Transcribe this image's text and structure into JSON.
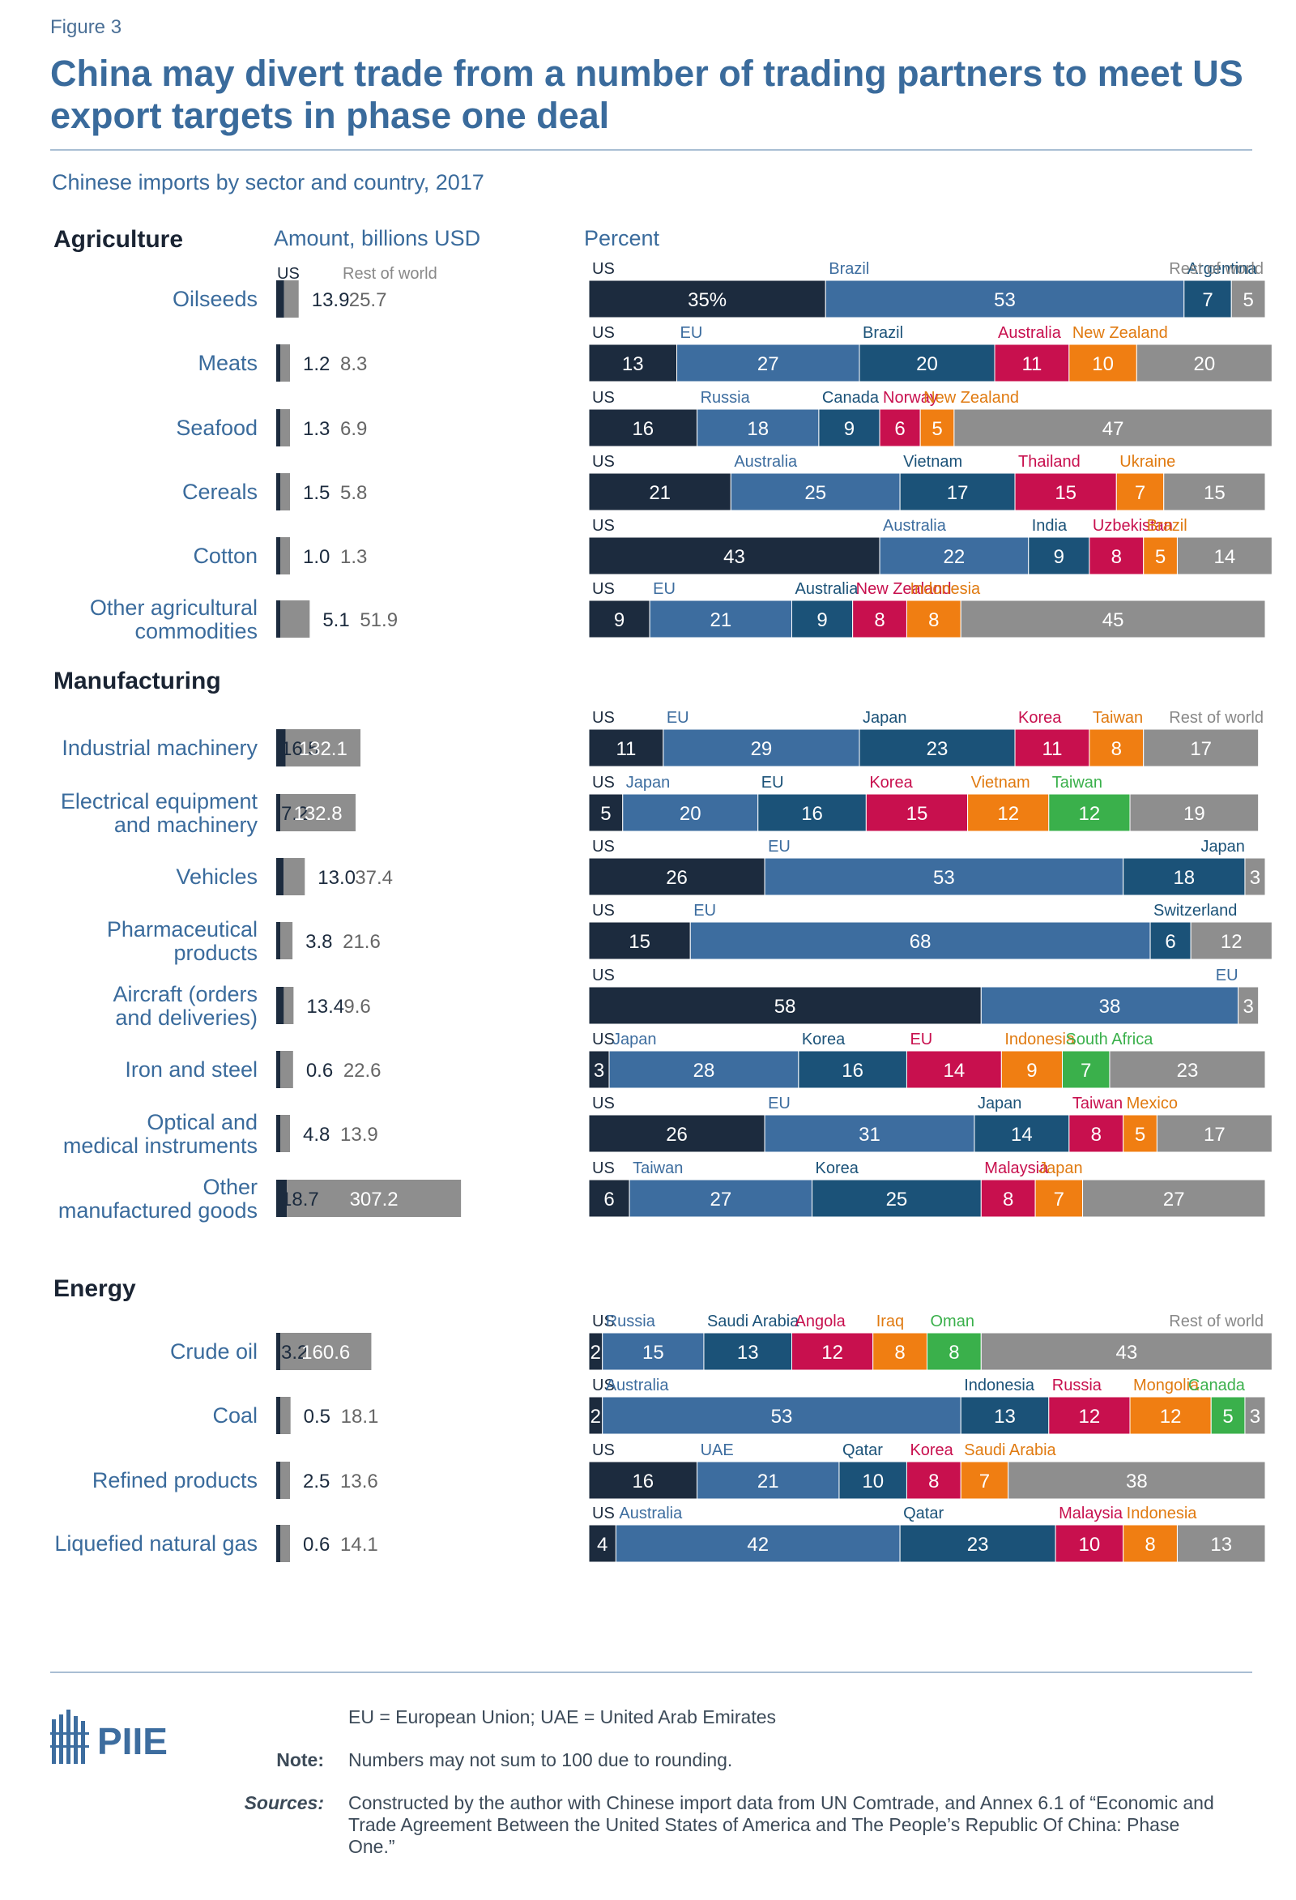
{
  "figure_label": "Figure 3",
  "title": "China may divert trade from a number of trading partners to meet US export targets in phase one deal",
  "subtitle": "Chinese imports by sector and country, 2017",
  "amount_header": "Amount, billions USD",
  "percent_header": "Percent",
  "amount_legend": {
    "us": "US",
    "row": "Rest of world"
  },
  "colors": {
    "US": "#1c2b3e",
    "c2": "#3d6d9f",
    "c3": "#1b5278",
    "c4": "#c8104e",
    "c5": "#f07e12",
    "c6": "#3ab04b",
    "rest": "#8e8e8e",
    "row_amount": "#8e8e8e",
    "label_us": "#1c2b3e",
    "label_c2": "#3d6d9f",
    "label_c3": "#1b5278",
    "label_c4": "#c8104e",
    "label_c5": "#e07a10",
    "label_c6": "#3ab04b",
    "label_rest": "#888888"
  },
  "chart_data": {
    "type": "bar",
    "sections": [
      {
        "name": "Agriculture",
        "rows": [
          {
            "label": "Oilseeds",
            "us": 13.9,
            "row": 25.7,
            "us_text": "13.9",
            "row_text": "25.7",
            "segments": [
              {
                "c": "US",
                "v": 35,
                "t": "35%",
                "lab": "US"
              },
              {
                "c": "Brazil",
                "v": 53,
                "lab": "Brazil"
              },
              {
                "c": "Argentina",
                "v": 7,
                "lab": "Argentina"
              },
              {
                "c": "Rest of world",
                "v": 5,
                "lab": "Rest of world"
              }
            ]
          },
          {
            "label": "Meats",
            "us": 1.2,
            "row": 8.3,
            "us_text": "1.2",
            "row_text": "8.3",
            "segments": [
              {
                "c": "US",
                "v": 13
              },
              {
                "c": "EU",
                "v": 27
              },
              {
                "c": "Brazil",
                "v": 20
              },
              {
                "c": "Australia",
                "v": 11
              },
              {
                "c": "New Zealand",
                "v": 10
              },
              {
                "c": "Rest of world",
                "v": 20
              }
            ]
          },
          {
            "label": "Seafood",
            "us": 1.3,
            "row": 6.9,
            "us_text": "1.3",
            "row_text": "6.9",
            "segments": [
              {
                "c": "US",
                "v": 16
              },
              {
                "c": "Russia",
                "v": 18
              },
              {
                "c": "Canada",
                "v": 9
              },
              {
                "c": "Norway",
                "v": 6
              },
              {
                "c": "New Zealand",
                "v": 5
              },
              {
                "c": "Rest of world",
                "v": 47
              }
            ]
          },
          {
            "label": "Cereals",
            "us": 1.5,
            "row": 5.8,
            "us_text": "1.5",
            "row_text": "5.8",
            "segments": [
              {
                "c": "US",
                "v": 21
              },
              {
                "c": "Australia",
                "v": 25
              },
              {
                "c": "Vietnam",
                "v": 17
              },
              {
                "c": "Thailand",
                "v": 15
              },
              {
                "c": "Ukraine",
                "v": 7
              },
              {
                "c": "Rest of world",
                "v": 15
              }
            ]
          },
          {
            "label": "Cotton",
            "us": 1.0,
            "row": 1.3,
            "us_text": "1.0",
            "row_text": "1.3",
            "segments": [
              {
                "c": "US",
                "v": 43
              },
              {
                "c": "Australia",
                "v": 22
              },
              {
                "c": "India",
                "v": 9
              },
              {
                "c": "Uzbekistan",
                "v": 8
              },
              {
                "c": "Brazil",
                "v": 5
              },
              {
                "c": "Rest of world",
                "v": 14
              }
            ]
          },
          {
            "label": "Other agricultural commodities",
            "us": 5.1,
            "row": 51.9,
            "us_text": "5.1",
            "row_text": "51.9",
            "segments": [
              {
                "c": "US",
                "v": 9
              },
              {
                "c": "EU",
                "v": 21
              },
              {
                "c": "Australia",
                "v": 9
              },
              {
                "c": "New Zealand",
                "v": 8
              },
              {
                "c": "Indonesia",
                "v": 8
              },
              {
                "c": "Rest of world",
                "v": 45
              }
            ]
          }
        ]
      },
      {
        "name": "Manufacturing",
        "rows": [
          {
            "label": "Industrial machinery",
            "us": 16.5,
            "row": 132.1,
            "us_text": "16.5",
            "row_text": "132.1",
            "segments": [
              {
                "c": "US",
                "v": 11
              },
              {
                "c": "EU",
                "v": 29
              },
              {
                "c": "Japan",
                "v": 23
              },
              {
                "c": "Korea",
                "v": 11
              },
              {
                "c": "Taiwan",
                "v": 8
              },
              {
                "c": "Rest of world",
                "v": 17,
                "lab": "Rest of world"
              }
            ]
          },
          {
            "label": "Electrical equipment and machinery",
            "us": 7.2,
            "row": 132.8,
            "us_text": "7.2",
            "row_text": "132.8",
            "segments": [
              {
                "c": "US",
                "v": 5
              },
              {
                "c": "Japan",
                "v": 20
              },
              {
                "c": "EU",
                "v": 16
              },
              {
                "c": "Korea",
                "v": 15
              },
              {
                "c": "Vietnam",
                "v": 12
              },
              {
                "c": "Taiwan",
                "v": 12
              },
              {
                "c": "Rest of world",
                "v": 19
              }
            ]
          },
          {
            "label": "Vehicles",
            "us": 13.0,
            "row": 37.4,
            "us_text": "13.0",
            "row_text": "37.4",
            "segments": [
              {
                "c": "US",
                "v": 26
              },
              {
                "c": "EU",
                "v": 53
              },
              {
                "c": "Japan",
                "v": 18
              },
              {
                "c": "Rest of world",
                "v": 3
              }
            ]
          },
          {
            "label": "Pharmaceutical products",
            "us": 3.8,
            "row": 21.6,
            "us_text": "3.8",
            "row_text": "21.6",
            "segments": [
              {
                "c": "US",
                "v": 15
              },
              {
                "c": "EU",
                "v": 68
              },
              {
                "c": "Switzerland",
                "v": 6
              },
              {
                "c": "Rest of world",
                "v": 12
              }
            ]
          },
          {
            "label": "Aircraft (orders and deliveries)",
            "us": 13.4,
            "row": 9.6,
            "us_text": "13.4",
            "row_text": "9.6",
            "segments": [
              {
                "c": "US",
                "v": 58
              },
              {
                "c": "EU",
                "v": 38
              },
              {
                "c": "Rest of world",
                "v": 3
              }
            ]
          },
          {
            "label": "Iron and steel",
            "us": 0.6,
            "row": 22.6,
            "us_text": "0.6",
            "row_text": "22.6",
            "segments": [
              {
                "c": "US",
                "v": 3
              },
              {
                "c": "Japan",
                "v": 28
              },
              {
                "c": "Korea",
                "v": 16
              },
              {
                "c": "EU",
                "v": 14
              },
              {
                "c": "Indonesia",
                "v": 9
              },
              {
                "c": "South Africa",
                "v": 7
              },
              {
                "c": "Rest of world",
                "v": 23
              }
            ]
          },
          {
            "label": "Optical and medical instruments",
            "us": 4.8,
            "row": 13.9,
            "us_text": "4.8",
            "row_text": "13.9",
            "segments": [
              {
                "c": "US",
                "v": 26
              },
              {
                "c": "EU",
                "v": 31
              },
              {
                "c": "Japan",
                "v": 14
              },
              {
                "c": "Taiwan",
                "v": 8
              },
              {
                "c": "Mexico",
                "v": 5
              },
              {
                "c": "Rest of world",
                "v": 17
              }
            ]
          },
          {
            "label": "Other manufactured goods",
            "us": 18.7,
            "row": 307.2,
            "us_text": "18.7",
            "row_text": "307.2",
            "segments": [
              {
                "c": "US",
                "v": 6
              },
              {
                "c": "Taiwan",
                "v": 27
              },
              {
                "c": "Korea",
                "v": 25
              },
              {
                "c": "Malaysia",
                "v": 8
              },
              {
                "c": "Japan",
                "v": 7
              },
              {
                "c": "Rest of world",
                "v": 27
              }
            ]
          }
        ]
      },
      {
        "name": "Energy",
        "rows": [
          {
            "label": "Crude oil",
            "us": 3.2,
            "row": 160.6,
            "us_text": "3.2",
            "row_text": "160.6",
            "segments": [
              {
                "c": "US",
                "v": 2
              },
              {
                "c": "Russia",
                "v": 15
              },
              {
                "c": "Saudi Arabia",
                "v": 13
              },
              {
                "c": "Angola",
                "v": 12
              },
              {
                "c": "Iraq",
                "v": 8
              },
              {
                "c": "Oman",
                "v": 8
              },
              {
                "c": "Rest of world",
                "v": 43,
                "lab": "Rest of world"
              }
            ]
          },
          {
            "label": "Coal",
            "us": 0.5,
            "row": 18.1,
            "us_text": "0.5",
            "row_text": "18.1",
            "segments": [
              {
                "c": "US",
                "v": 2
              },
              {
                "c": "Australia",
                "v": 53
              },
              {
                "c": "Indonesia",
                "v": 13
              },
              {
                "c": "Russia",
                "v": 12
              },
              {
                "c": "Mongolia",
                "v": 12
              },
              {
                "c": "Canada",
                "v": 5
              },
              {
                "c": "Rest of world",
                "v": 3
              }
            ]
          },
          {
            "label": "Refined products",
            "us": 2.5,
            "row": 13.6,
            "us_text": "2.5",
            "row_text": "13.6",
            "segments": [
              {
                "c": "US",
                "v": 16
              },
              {
                "c": "UAE",
                "v": 21
              },
              {
                "c": "Qatar",
                "v": 10
              },
              {
                "c": "Korea",
                "v": 8
              },
              {
                "c": "Saudi Arabia",
                "v": 7
              },
              {
                "c": "Rest of world",
                "v": 38
              }
            ]
          },
          {
            "label": "Liquefied natural gas",
            "us": 0.6,
            "row": 14.1,
            "us_text": "0.6",
            "row_text": "14.1",
            "segments": [
              {
                "c": "US",
                "v": 4
              },
              {
                "c": "Australia",
                "v": 42
              },
              {
                "c": "Qatar",
                "v": 23
              },
              {
                "c": "Malaysia",
                "v": 10
              },
              {
                "c": "Indonesia",
                "v": 8
              },
              {
                "c": "Rest of world",
                "v": 13
              }
            ]
          }
        ]
      }
    ]
  },
  "footer": {
    "logo_text": "PIIE",
    "abbrev": "EU = European Union; UAE = United Arab Emirates",
    "note_label": "Note:",
    "note": "Numbers may not sum to 100 due to rounding.",
    "sources_label": "Sources:",
    "sources": "Constructed by the author with Chinese import data from UN Comtrade, and Annex 6.1 of “Economic and Trade Agreement Between the United States of America and The People’s Republic Of China: Phase One.”"
  }
}
